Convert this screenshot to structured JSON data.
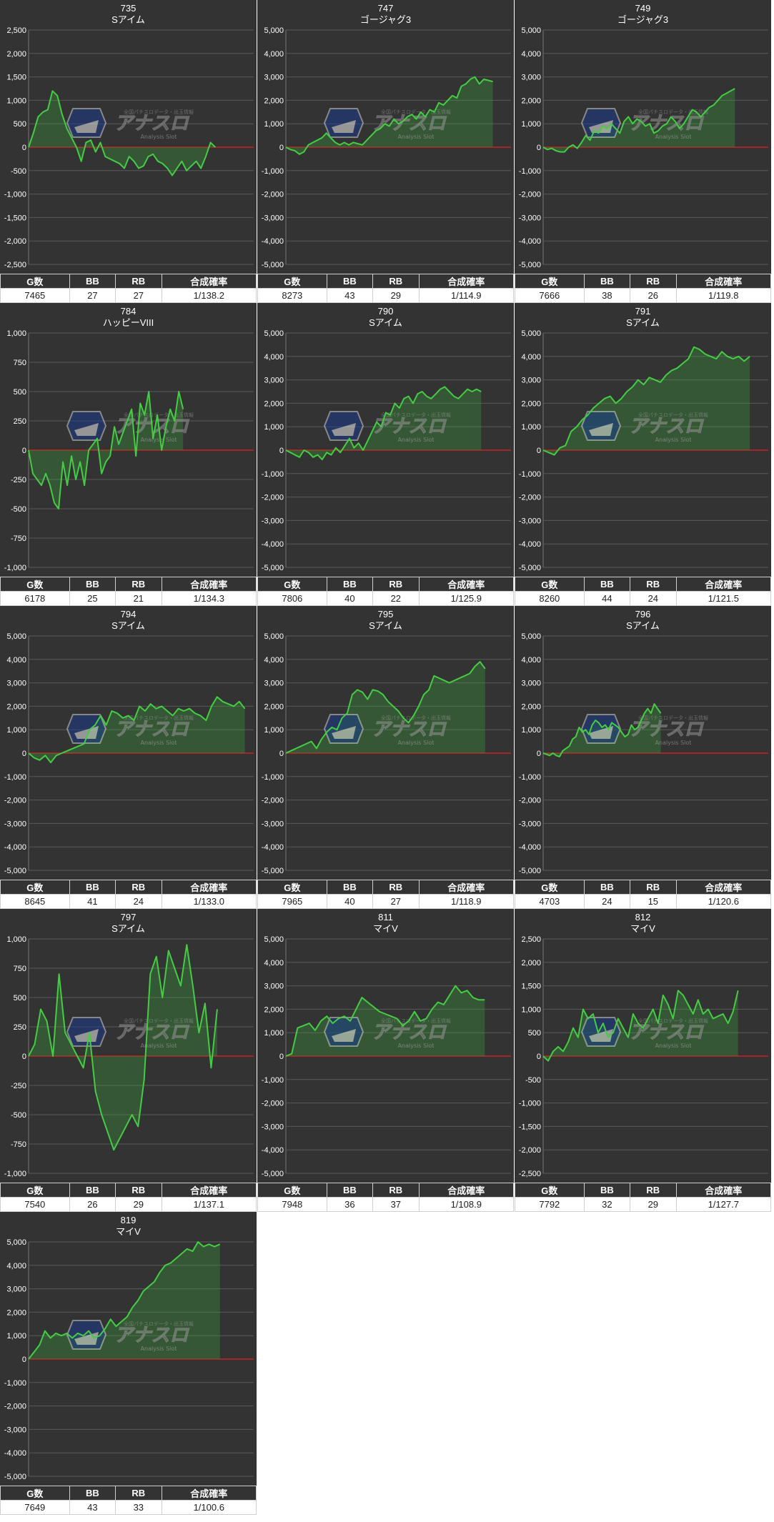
{
  "table_headers": [
    "G数",
    "BB",
    "RB",
    "合成確率"
  ],
  "colors": {
    "panel_bg": "#333333",
    "grid": "#5a5a5a",
    "line": "#44cc44",
    "fill": "#3d9a3d",
    "zero": "#dd2222"
  },
  "watermark": {
    "logo": "アナスロ",
    "sub": "Analysis Slot",
    "tag": "全国パチスロデータ・出玉情報"
  },
  "panels": [
    {
      "number": "735",
      "machine": "Sアイム",
      "stats": [
        "7465",
        "27",
        "27",
        "1/138.2"
      ]
    },
    {
      "number": "747",
      "machine": "ゴージャグ3",
      "stats": [
        "8273",
        "43",
        "29",
        "1/114.9"
      ]
    },
    {
      "number": "749",
      "machine": "ゴージャグ3",
      "stats": [
        "7666",
        "38",
        "26",
        "1/119.8"
      ]
    },
    {
      "number": "784",
      "machine": "ハッピーVIII",
      "stats": [
        "6178",
        "25",
        "21",
        "1/134.3"
      ]
    },
    {
      "number": "790",
      "machine": "Sアイム",
      "stats": [
        "7806",
        "40",
        "22",
        "1/125.9"
      ]
    },
    {
      "number": "791",
      "machine": "Sアイム",
      "stats": [
        "8260",
        "44",
        "24",
        "1/121.5"
      ]
    },
    {
      "number": "794",
      "machine": "Sアイム",
      "stats": [
        "8645",
        "41",
        "24",
        "1/133.0"
      ]
    },
    {
      "number": "795",
      "machine": "Sアイム",
      "stats": [
        "7965",
        "40",
        "27",
        "1/118.9"
      ]
    },
    {
      "number": "796",
      "machine": "Sアイム",
      "stats": [
        "4703",
        "24",
        "15",
        "1/120.6"
      ]
    },
    {
      "number": "797",
      "machine": "Sアイム",
      "stats": [
        "7540",
        "26",
        "29",
        "1/137.1"
      ]
    },
    {
      "number": "811",
      "machine": "マイV",
      "stats": [
        "7948",
        "36",
        "37",
        "1/108.9"
      ]
    },
    {
      "number": "812",
      "machine": "マイV",
      "stats": [
        "7792",
        "32",
        "29",
        "1/127.7"
      ]
    },
    {
      "number": "819",
      "machine": "マイV",
      "stats": [
        "7649",
        "43",
        "33",
        "1/100.6"
      ]
    }
  ],
  "chart_data": [
    {
      "type": "area",
      "title": "735",
      "subtitle": "Sアイム",
      "yticks": [
        "2,500",
        "2,000",
        "1,500",
        "1,000",
        "500",
        "0",
        "-500",
        "-1,000",
        "-1,500",
        "-2,000",
        "-2,500"
      ],
      "ylim": [
        -2500,
        2500
      ],
      "games": 7465,
      "values": [
        0,
        300,
        650,
        750,
        800,
        1200,
        1100,
        700,
        400,
        200,
        0,
        -300,
        100,
        150,
        -100,
        100,
        -200,
        -250,
        -300,
        -350,
        -450,
        -200,
        -300,
        -450,
        -400,
        -200,
        -150,
        -300,
        -350,
        -450,
        -600,
        -450,
        -300,
        -500,
        -400,
        -300,
        -450,
        -200,
        100,
        0
      ]
    },
    {
      "type": "area",
      "title": "747",
      "subtitle": "ゴージャグ3",
      "yticks": [
        "5,000",
        "4,000",
        "3,000",
        "2,000",
        "1,000",
        "0",
        "-1,000",
        "-2,000",
        "-3,000",
        "-4,000",
        "-5,000"
      ],
      "ylim": [
        -5000,
        5000
      ],
      "games": 8273,
      "values": [
        0,
        -100,
        -150,
        -300,
        -200,
        100,
        200,
        300,
        400,
        600,
        400,
        200,
        100,
        200,
        100,
        200,
        150,
        100,
        300,
        500,
        700,
        800,
        1000,
        900,
        1200,
        1000,
        1100,
        1300,
        1400,
        1200,
        1500,
        1300,
        1600,
        1500,
        1900,
        1800,
        2000,
        2200,
        2100,
        2600,
        2700,
        2900,
        3000,
        2700,
        2900,
        2850,
        2800
      ]
    },
    {
      "type": "area",
      "title": "749",
      "subtitle": "ゴージャグ3",
      "yticks": [
        "5,000",
        "4,000",
        "3,000",
        "2,000",
        "1,000",
        "0",
        "-1,000",
        "-2,000",
        "-3,000",
        "-4,000",
        "-5,000"
      ],
      "ylim": [
        -5000,
        5000
      ],
      "games": 7666,
      "values": [
        0,
        -100,
        -50,
        -150,
        -200,
        -200,
        0,
        100,
        -50,
        200,
        500,
        300,
        700,
        600,
        900,
        800,
        1000,
        800,
        600,
        1100,
        1300,
        1000,
        1200,
        1100,
        900,
        1000,
        600,
        700,
        900,
        1000,
        1300,
        1100,
        800,
        1000,
        1300,
        1600,
        1500,
        1300,
        1500,
        1700,
        1800,
        2000,
        2200,
        2300,
        2400,
        2500
      ]
    },
    {
      "type": "area",
      "title": "784",
      "subtitle": "ハッピーVIII",
      "yticks": [
        "1,000",
        "750",
        "500",
        "250",
        "0",
        "-250",
        "-500",
        "-750",
        "-1,000"
      ],
      "ylim": [
        -1000,
        1000
      ],
      "games": 6178,
      "values": [
        0,
        -200,
        -250,
        -300,
        -200,
        -300,
        -450,
        -500,
        -100,
        -300,
        -50,
        -250,
        -100,
        -300,
        0,
        50,
        100,
        -200,
        -100,
        -50,
        200,
        50,
        150,
        250,
        350,
        -50,
        400,
        300,
        500,
        100,
        300,
        0,
        200,
        350,
        250,
        500,
        350
      ]
    },
    {
      "type": "area",
      "title": "790",
      "subtitle": "Sアイム",
      "yticks": [
        "5,000",
        "4,000",
        "3,000",
        "2,000",
        "1,000",
        "0",
        "-1,000",
        "-2,000",
        "-3,000",
        "-4,000",
        "-5,000"
      ],
      "ylim": [
        -5000,
        5000
      ],
      "games": 7806,
      "values": [
        0,
        -100,
        -200,
        -300,
        0,
        -100,
        -300,
        -200,
        -400,
        -100,
        -200,
        100,
        -100,
        200,
        500,
        100,
        300,
        0,
        400,
        800,
        1200,
        1000,
        1600,
        1500,
        2000,
        1800,
        2200,
        2300,
        2000,
        2400,
        2500,
        2300,
        2200,
        2400,
        2600,
        2700,
        2500,
        2300,
        2200,
        2400,
        2600,
        2500,
        2600,
        2500
      ]
    },
    {
      "type": "area",
      "title": "791",
      "subtitle": "Sアイム",
      "yticks": [
        "5,000",
        "4,000",
        "3,000",
        "2,000",
        "1,000",
        "0",
        "-1,000",
        "-2,000",
        "-3,000",
        "-4,000",
        "-5,000"
      ],
      "ylim": [
        -5000,
        5000
      ],
      "games": 8260,
      "values": [
        0,
        -100,
        -200,
        100,
        200,
        800,
        1000,
        1300,
        1500,
        1800,
        2000,
        2200,
        2300,
        2000,
        2200,
        2500,
        2700,
        3000,
        2800,
        3100,
        3000,
        2900,
        3200,
        3400,
        3500,
        3700,
        3900,
        4400,
        4300,
        4100,
        4000,
        3900,
        4200,
        4000,
        3900,
        4000,
        3800,
        4000
      ]
    },
    {
      "type": "area",
      "title": "794",
      "subtitle": "Sアイム",
      "yticks": [
        "5,000",
        "4,000",
        "3,000",
        "2,000",
        "1,000",
        "0",
        "-1,000",
        "-2,000",
        "-3,000",
        "-4,000",
        "-5,000"
      ],
      "ylim": [
        -5000,
        5000
      ],
      "games": 8645,
      "values": [
        0,
        -200,
        -300,
        -100,
        -400,
        -100,
        0,
        100,
        200,
        300,
        400,
        1000,
        1200,
        1600,
        1200,
        1800,
        1700,
        1500,
        1600,
        1400,
        2000,
        1800,
        2100,
        1900,
        2000,
        1800,
        1600,
        1900,
        1800,
        1900,
        1700,
        1600,
        1400,
        2000,
        2400,
        2200,
        2100,
        2000,
        2200,
        1900
      ]
    },
    {
      "type": "area",
      "title": "795",
      "subtitle": "Sアイム",
      "yticks": [
        "5,000",
        "4,000",
        "3,000",
        "2,000",
        "1,000",
        "0",
        "-1,000",
        "-2,000",
        "-3,000",
        "-4,000",
        "-5,000"
      ],
      "ylim": [
        -5000,
        5000
      ],
      "games": 7965,
      "values": [
        0,
        100,
        200,
        300,
        400,
        500,
        200,
        600,
        900,
        1100,
        1000,
        1500,
        1700,
        2500,
        2700,
        2600,
        2300,
        2700,
        2650,
        2500,
        2200,
        2000,
        1800,
        1500,
        1300,
        1600,
        2000,
        2500,
        2700,
        3300,
        3200,
        3100,
        3000,
        3100,
        3200,
        3300,
        3400,
        3700,
        3900,
        3600
      ]
    },
    {
      "type": "area",
      "title": "796",
      "subtitle": "Sアイム",
      "yticks": [
        "5,000",
        "4,000",
        "3,000",
        "2,000",
        "1,000",
        "0",
        "-1,000",
        "-2,000",
        "-3,000",
        "-4,000",
        "-5,000"
      ],
      "ylim": [
        -5000,
        5000
      ],
      "games": 4703,
      "values": [
        0,
        -50,
        -100,
        0,
        -100,
        -150,
        100,
        200,
        300,
        600,
        700,
        1100,
        900,
        1000,
        800,
        1200,
        1400,
        1300,
        1100,
        1200,
        1000,
        1300,
        1200,
        1100,
        900,
        700,
        800,
        1200,
        1000,
        1100,
        1400,
        1700,
        1900,
        1700,
        2100,
        1900,
        1700
      ]
    },
    {
      "type": "area",
      "title": "797",
      "subtitle": "Sアイム",
      "yticks": [
        "1,000",
        "750",
        "500",
        "250",
        "0",
        "-250",
        "-500",
        "-750",
        "-1,000"
      ],
      "ylim": [
        -1000,
        1000
      ],
      "games": 7540,
      "values": [
        0,
        100,
        400,
        300,
        0,
        700,
        200,
        100,
        0,
        -100,
        200,
        -300,
        -500,
        -650,
        -800,
        -700,
        -600,
        -500,
        -600,
        -200,
        700,
        850,
        500,
        900,
        750,
        600,
        950,
        600,
        200,
        450,
        -100,
        400
      ]
    },
    {
      "type": "area",
      "title": "811",
      "subtitle": "マイV",
      "yticks": [
        "5,000",
        "4,000",
        "3,000",
        "2,000",
        "1,000",
        "0",
        "-1,000",
        "-2,000",
        "-3,000",
        "-4,000",
        "-5,000"
      ],
      "ylim": [
        -5000,
        5000
      ],
      "games": 7948,
      "values": [
        0,
        100,
        1200,
        1300,
        1400,
        1100,
        1500,
        1700,
        1400,
        1600,
        1700,
        1500,
        2000,
        2500,
        2300,
        2100,
        1900,
        1800,
        1700,
        1600,
        1300,
        1500,
        1900,
        1500,
        1600,
        2000,
        2300,
        2200,
        2600,
        3000,
        2700,
        2800,
        2500,
        2400,
        2400
      ]
    },
    {
      "type": "area",
      "title": "812",
      "subtitle": "マイV",
      "yticks": [
        "2,500",
        "2,000",
        "1,500",
        "1,000",
        "500",
        "0",
        "-500",
        "-1,000",
        "-1,500",
        "-2,000",
        "-2,500"
      ],
      "ylim": [
        -2500,
        2500
      ],
      "games": 7792,
      "values": [
        0,
        -100,
        100,
        200,
        100,
        300,
        600,
        400,
        1000,
        800,
        900,
        500,
        700,
        400,
        500,
        800,
        600,
        400,
        900,
        700,
        600,
        800,
        1000,
        700,
        1300,
        1100,
        800,
        1400,
        1300,
        1100,
        900,
        1200,
        900,
        1000,
        800,
        850,
        900,
        700,
        950,
        1400
      ]
    },
    {
      "type": "area",
      "title": "819",
      "subtitle": "マイV",
      "yticks": [
        "5,000",
        "4,000",
        "3,000",
        "2,000",
        "1,000",
        "0",
        "-1,000",
        "-2,000",
        "-3,000",
        "-4,000",
        "-5,000"
      ],
      "ylim": [
        -5000,
        5000
      ],
      "games": 7649,
      "values": [
        0,
        300,
        600,
        1200,
        900,
        1100,
        1000,
        1100,
        900,
        1100,
        1000,
        1200,
        900,
        1000,
        1300,
        1700,
        1400,
        1600,
        1800,
        2200,
        2500,
        2900,
        3100,
        3300,
        3700,
        4000,
        4100,
        4300,
        4500,
        4700,
        4600,
        5000,
        4800,
        4900,
        4800,
        4900
      ]
    }
  ]
}
